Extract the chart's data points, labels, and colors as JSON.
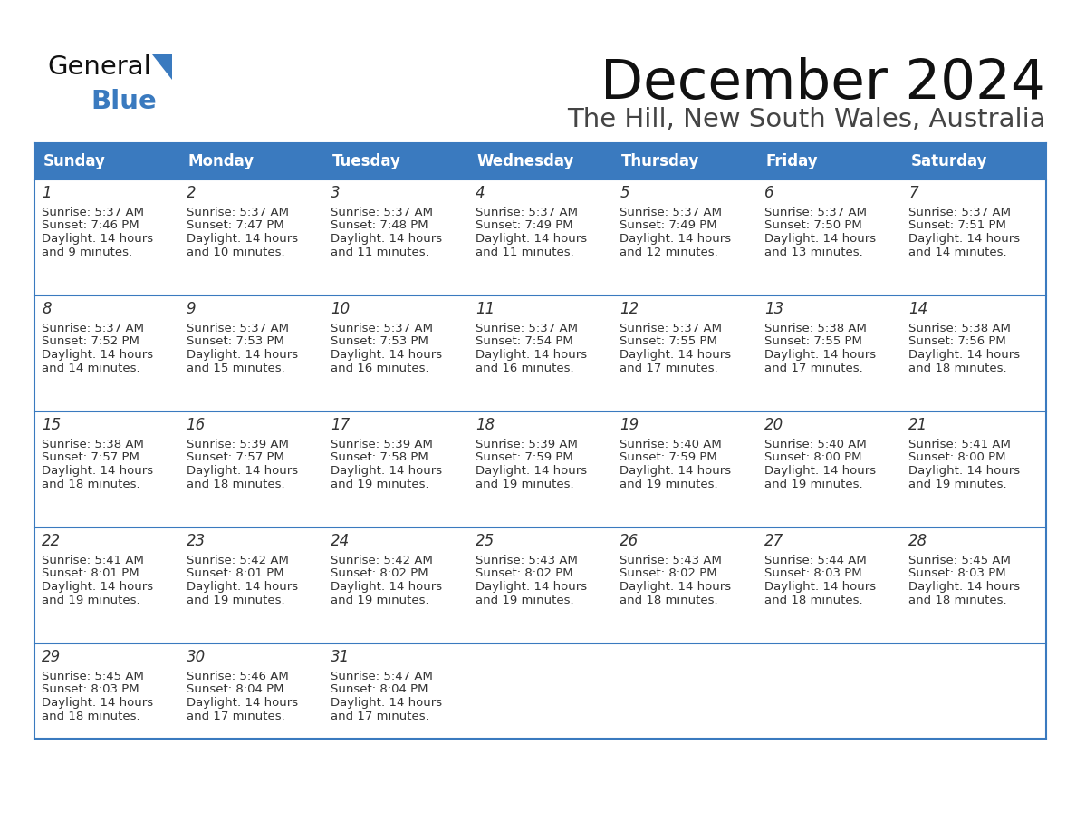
{
  "title": "December 2024",
  "subtitle": "The Hill, New South Wales, Australia",
  "header_bg_color": "#3a7abf",
  "header_text_color": "#ffffff",
  "cell_bg_color": "#ffffff",
  "border_color": "#3a7abf",
  "text_color": "#333333",
  "day_num_color": "#333333",
  "days_of_week": [
    "Sunday",
    "Monday",
    "Tuesday",
    "Wednesday",
    "Thursday",
    "Friday",
    "Saturday"
  ],
  "calendar_data": [
    [
      {
        "day": 1,
        "sunrise": "5:37 AM",
        "sunset": "7:46 PM",
        "daylight_h": "14 hours",
        "daylight_m": "and 9 minutes."
      },
      {
        "day": 2,
        "sunrise": "5:37 AM",
        "sunset": "7:47 PM",
        "daylight_h": "14 hours",
        "daylight_m": "and 10 minutes."
      },
      {
        "day": 3,
        "sunrise": "5:37 AM",
        "sunset": "7:48 PM",
        "daylight_h": "14 hours",
        "daylight_m": "and 11 minutes."
      },
      {
        "day": 4,
        "sunrise": "5:37 AM",
        "sunset": "7:49 PM",
        "daylight_h": "14 hours",
        "daylight_m": "and 11 minutes."
      },
      {
        "day": 5,
        "sunrise": "5:37 AM",
        "sunset": "7:49 PM",
        "daylight_h": "14 hours",
        "daylight_m": "and 12 minutes."
      },
      {
        "day": 6,
        "sunrise": "5:37 AM",
        "sunset": "7:50 PM",
        "daylight_h": "14 hours",
        "daylight_m": "and 13 minutes."
      },
      {
        "day": 7,
        "sunrise": "5:37 AM",
        "sunset": "7:51 PM",
        "daylight_h": "14 hours",
        "daylight_m": "and 14 minutes."
      }
    ],
    [
      {
        "day": 8,
        "sunrise": "5:37 AM",
        "sunset": "7:52 PM",
        "daylight_h": "14 hours",
        "daylight_m": "and 14 minutes."
      },
      {
        "day": 9,
        "sunrise": "5:37 AM",
        "sunset": "7:53 PM",
        "daylight_h": "14 hours",
        "daylight_m": "and 15 minutes."
      },
      {
        "day": 10,
        "sunrise": "5:37 AM",
        "sunset": "7:53 PM",
        "daylight_h": "14 hours",
        "daylight_m": "and 16 minutes."
      },
      {
        "day": 11,
        "sunrise": "5:37 AM",
        "sunset": "7:54 PM",
        "daylight_h": "14 hours",
        "daylight_m": "and 16 minutes."
      },
      {
        "day": 12,
        "sunrise": "5:37 AM",
        "sunset": "7:55 PM",
        "daylight_h": "14 hours",
        "daylight_m": "and 17 minutes."
      },
      {
        "day": 13,
        "sunrise": "5:38 AM",
        "sunset": "7:55 PM",
        "daylight_h": "14 hours",
        "daylight_m": "and 17 minutes."
      },
      {
        "day": 14,
        "sunrise": "5:38 AM",
        "sunset": "7:56 PM",
        "daylight_h": "14 hours",
        "daylight_m": "and 18 minutes."
      }
    ],
    [
      {
        "day": 15,
        "sunrise": "5:38 AM",
        "sunset": "7:57 PM",
        "daylight_h": "14 hours",
        "daylight_m": "and 18 minutes."
      },
      {
        "day": 16,
        "sunrise": "5:39 AM",
        "sunset": "7:57 PM",
        "daylight_h": "14 hours",
        "daylight_m": "and 18 minutes."
      },
      {
        "day": 17,
        "sunrise": "5:39 AM",
        "sunset": "7:58 PM",
        "daylight_h": "14 hours",
        "daylight_m": "and 19 minutes."
      },
      {
        "day": 18,
        "sunrise": "5:39 AM",
        "sunset": "7:59 PM",
        "daylight_h": "14 hours",
        "daylight_m": "and 19 minutes."
      },
      {
        "day": 19,
        "sunrise": "5:40 AM",
        "sunset": "7:59 PM",
        "daylight_h": "14 hours",
        "daylight_m": "and 19 minutes."
      },
      {
        "day": 20,
        "sunrise": "5:40 AM",
        "sunset": "8:00 PM",
        "daylight_h": "14 hours",
        "daylight_m": "and 19 minutes."
      },
      {
        "day": 21,
        "sunrise": "5:41 AM",
        "sunset": "8:00 PM",
        "daylight_h": "14 hours",
        "daylight_m": "and 19 minutes."
      }
    ],
    [
      {
        "day": 22,
        "sunrise": "5:41 AM",
        "sunset": "8:01 PM",
        "daylight_h": "14 hours",
        "daylight_m": "and 19 minutes."
      },
      {
        "day": 23,
        "sunrise": "5:42 AM",
        "sunset": "8:01 PM",
        "daylight_h": "14 hours",
        "daylight_m": "and 19 minutes."
      },
      {
        "day": 24,
        "sunrise": "5:42 AM",
        "sunset": "8:02 PM",
        "daylight_h": "14 hours",
        "daylight_m": "and 19 minutes."
      },
      {
        "day": 25,
        "sunrise": "5:43 AM",
        "sunset": "8:02 PM",
        "daylight_h": "14 hours",
        "daylight_m": "and 19 minutes."
      },
      {
        "day": 26,
        "sunrise": "5:43 AM",
        "sunset": "8:02 PM",
        "daylight_h": "14 hours",
        "daylight_m": "and 18 minutes."
      },
      {
        "day": 27,
        "sunrise": "5:44 AM",
        "sunset": "8:03 PM",
        "daylight_h": "14 hours",
        "daylight_m": "and 18 minutes."
      },
      {
        "day": 28,
        "sunrise": "5:45 AM",
        "sunset": "8:03 PM",
        "daylight_h": "14 hours",
        "daylight_m": "and 18 minutes."
      }
    ],
    [
      {
        "day": 29,
        "sunrise": "5:45 AM",
        "sunset": "8:03 PM",
        "daylight_h": "14 hours",
        "daylight_m": "and 18 minutes."
      },
      {
        "day": 30,
        "sunrise": "5:46 AM",
        "sunset": "8:04 PM",
        "daylight_h": "14 hours",
        "daylight_m": "and 17 minutes."
      },
      {
        "day": 31,
        "sunrise": "5:47 AM",
        "sunset": "8:04 PM",
        "daylight_h": "14 hours",
        "daylight_m": "and 17 minutes."
      },
      null,
      null,
      null,
      null
    ]
  ],
  "logo_triangle_color": "#3a7abf",
  "logo_blue_color": "#3a7abf"
}
